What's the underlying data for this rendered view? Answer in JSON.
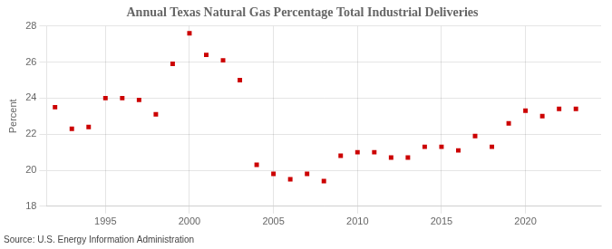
{
  "chart_data": {
    "type": "scatter",
    "title": "Annual Texas Natural Gas Percentage Total Industrial Deliveries",
    "ylabel": "Percent",
    "annotations": [
      "Source: U.S. Energy Information Administration"
    ],
    "x": [
      1992,
      1993,
      1994,
      1995,
      1996,
      1997,
      1998,
      1999,
      2000,
      2001,
      2002,
      2003,
      2004,
      2005,
      2006,
      2007,
      2008,
      2009,
      2010,
      2011,
      2012,
      2013,
      2014,
      2015,
      2016,
      2017,
      2018,
      2019,
      2020,
      2021,
      2022,
      2023
    ],
    "values": [
      23.5,
      22.3,
      22.4,
      24.0,
      24.0,
      23.9,
      23.1,
      25.9,
      27.6,
      26.4,
      26.1,
      25.0,
      20.3,
      19.8,
      19.5,
      19.8,
      19.4,
      20.8,
      21.0,
      21.0,
      20.7,
      20.7,
      21.3,
      21.3,
      21.1,
      21.9,
      21.3,
      22.6,
      23.3,
      23.0,
      23.4,
      23.4
    ],
    "color": "#cc0000",
    "marker": "square",
    "xlim": [
      1991.5,
      2024.5
    ],
    "xticks": [
      1995,
      2000,
      2005,
      2010,
      2015,
      2020
    ],
    "ylim": [
      18,
      28
    ],
    "yticks": [
      18,
      20,
      22,
      24,
      26,
      28
    ],
    "grid": true
  }
}
